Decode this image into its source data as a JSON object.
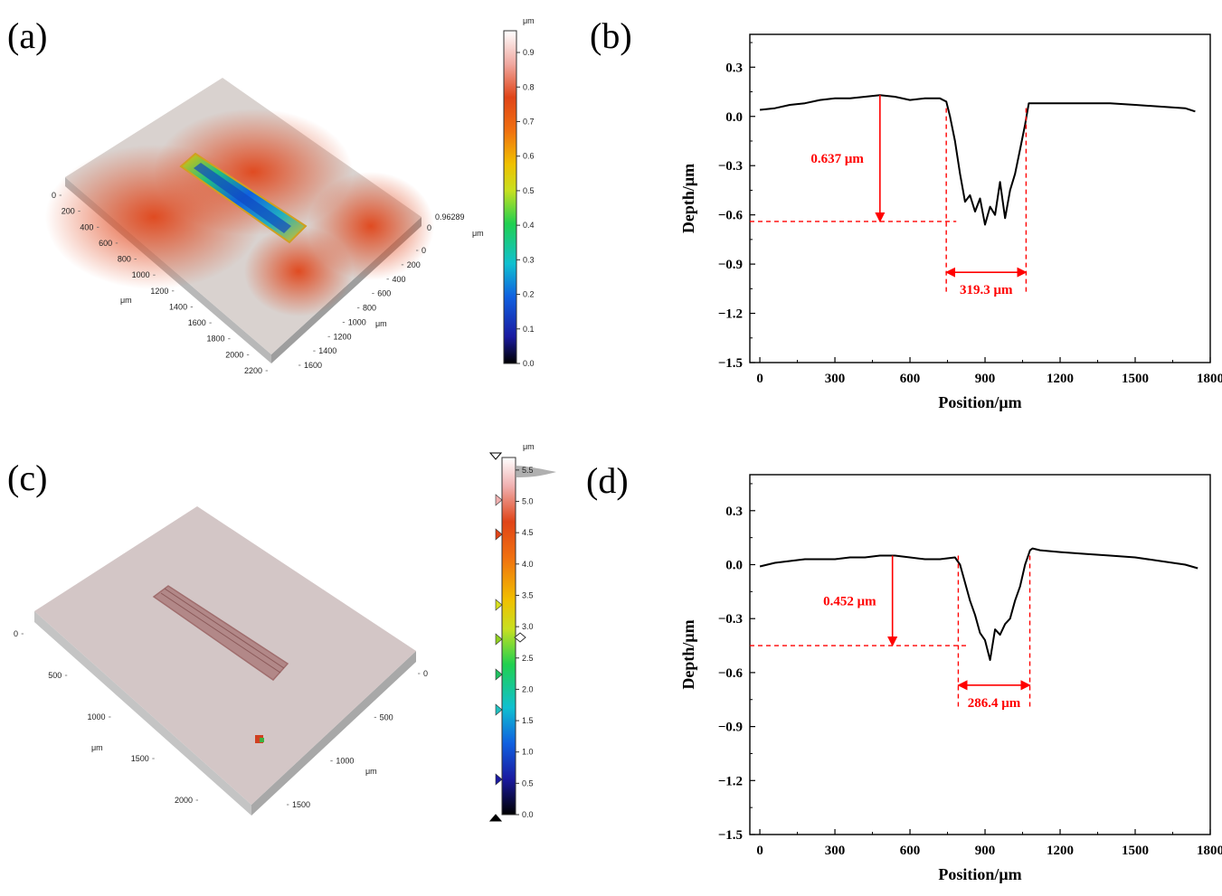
{
  "labels": {
    "a": "(a)",
    "b": "(b)",
    "c": "(c)",
    "d": "(d)"
  },
  "colors": {
    "accent": "#ff0000",
    "line": "#000000",
    "surface_a": "#d8452a",
    "surface_c": "#c7a7a7"
  },
  "surface_a": {
    "axis_left_ticks": [
      "0",
      "200",
      "400",
      "600",
      "800",
      "1000",
      "1200",
      "1400",
      "1600",
      "1800",
      "2000",
      "2200"
    ],
    "axis_left_unit": "μm",
    "axis_right_ticks": [
      "0",
      "200",
      "400",
      "600",
      "800",
      "1000",
      "1200",
      "1400",
      "1600"
    ],
    "axis_right_unit": "μm",
    "z_max_label": "0.96289",
    "z_unit": "μm",
    "colorbar_unit": "μm",
    "colorbar_ticks": [
      "0.9",
      "0.8",
      "0.7",
      "0.6",
      "0.5",
      "0.4",
      "0.3",
      "0.2",
      "0.1",
      "0.0"
    ],
    "colorbar_range": [
      0,
      0.96289
    ]
  },
  "surface_c": {
    "axis_left_ticks": [
      "0",
      "500",
      "1000",
      "1500",
      "2000"
    ],
    "axis_left_unit": "μm",
    "axis_right_ticks": [
      "0",
      "500",
      "1000",
      "1500"
    ],
    "axis_right_unit": "μm",
    "colorbar_unit": "μm",
    "colorbar_ticks": [
      "5.5",
      "5.0",
      "4.5",
      "4.0",
      "3.5",
      "3.0",
      "2.5",
      "2.0",
      "1.5",
      "1.0",
      "0.5",
      "0.0"
    ],
    "colorbar_range": [
      0,
      5.7
    ]
  },
  "chart_data": [
    {
      "id": "b",
      "type": "line",
      "xlabel": "Position/μm",
      "ylabel": "Depth/μm",
      "xlim": [
        -40,
        1800
      ],
      "ylim": [
        -1.5,
        0.5
      ],
      "xticks": [
        0,
        300,
        600,
        900,
        1200,
        1500,
        1800
      ],
      "yticks": [
        0.3,
        0.0,
        -0.3,
        -0.6,
        -0.9,
        -1.2,
        -1.5
      ],
      "ytick_labels": [
        "0.3",
        "0.0",
        "−0.3",
        "−0.6",
        "−0.9",
        "−1.2",
        "−1.5"
      ],
      "series": [
        {
          "x": [
            0,
            60,
            120,
            180,
            240,
            300,
            360,
            420,
            480,
            540,
            600,
            660,
            720,
            745,
            760,
            780,
            800,
            820,
            840,
            860,
            880,
            900,
            920,
            940,
            960,
            980,
            1000,
            1020,
            1040,
            1060,
            1075,
            1120,
            1200,
            1300,
            1400,
            1500,
            1600,
            1700,
            1740
          ],
          "y": [
            0.04,
            0.05,
            0.07,
            0.08,
            0.1,
            0.11,
            0.11,
            0.12,
            0.13,
            0.12,
            0.1,
            0.11,
            0.11,
            0.09,
            0.0,
            -0.15,
            -0.35,
            -0.52,
            -0.48,
            -0.58,
            -0.5,
            -0.66,
            -0.55,
            -0.6,
            -0.4,
            -0.62,
            -0.45,
            -0.35,
            -0.2,
            -0.05,
            0.08,
            0.08,
            0.08,
            0.08,
            0.08,
            0.07,
            0.06,
            0.05,
            0.03
          ]
        }
      ],
      "annotations": {
        "depth_label": "0.637 μm",
        "depth_value": 0.637,
        "depth_top_y": 0.13,
        "depth_arrow_x": 480,
        "level_y": -0.64,
        "width_label": "319.3 μm",
        "width_value": 319.3,
        "width_x1": 745,
        "width_x2": 1064,
        "width_arrow_y": -0.95
      }
    },
    {
      "id": "d",
      "type": "line",
      "xlabel": "Position/μm",
      "ylabel": "Depth/μm",
      "xlim": [
        -40,
        1800
      ],
      "ylim": [
        -1.5,
        0.5
      ],
      "xticks": [
        0,
        300,
        600,
        900,
        1200,
        1500,
        1800
      ],
      "yticks": [
        0.3,
        0.0,
        -0.3,
        -0.6,
        -0.9,
        -1.2,
        -1.5
      ],
      "ytick_labels": [
        "0.3",
        "0.0",
        "−0.3",
        "−0.6",
        "−0.9",
        "−1.2",
        "−1.5"
      ],
      "series": [
        {
          "x": [
            0,
            60,
            120,
            180,
            240,
            300,
            360,
            420,
            480,
            540,
            600,
            660,
            720,
            780,
            800,
            820,
            840,
            860,
            880,
            900,
            920,
            940,
            960,
            980,
            1000,
            1020,
            1040,
            1060,
            1080,
            1090,
            1120,
            1200,
            1300,
            1400,
            1500,
            1600,
            1700,
            1750
          ],
          "y": [
            -0.01,
            0.01,
            0.02,
            0.03,
            0.03,
            0.03,
            0.04,
            0.04,
            0.05,
            0.05,
            0.04,
            0.03,
            0.03,
            0.04,
            0.0,
            -0.1,
            -0.2,
            -0.28,
            -0.38,
            -0.42,
            -0.53,
            -0.36,
            -0.39,
            -0.33,
            -0.3,
            -0.2,
            -0.12,
            0.0,
            0.08,
            0.09,
            0.08,
            0.07,
            0.06,
            0.05,
            0.04,
            0.02,
            0.0,
            -0.02
          ]
        }
      ],
      "annotations": {
        "depth_label": "0.452 μm",
        "depth_value": 0.452,
        "depth_top_y": 0.05,
        "depth_arrow_x": 530,
        "level_y": -0.45,
        "width_label": "286.4 μm",
        "width_value": 286.4,
        "width_x1": 793,
        "width_x2": 1079,
        "width_arrow_y": -0.67
      }
    }
  ]
}
